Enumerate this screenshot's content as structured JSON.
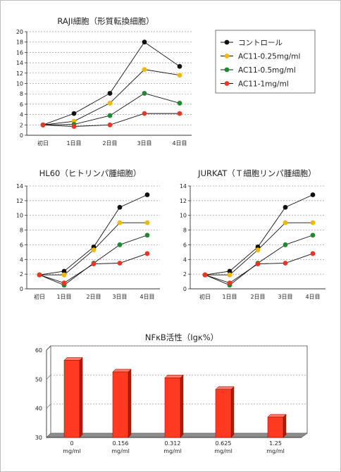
{
  "chart_data": [
    {
      "type": "line",
      "title": "RAJI細胞（形質転換細胞）",
      "categories": [
        "初日",
        "1日目",
        "2日目",
        "3日目",
        "4日目"
      ],
      "ylim": [
        0,
        20
      ],
      "yticks": [
        "0",
        "2",
        "4",
        "6",
        "8",
        "10",
        "12",
        "14",
        "16",
        "18",
        "20"
      ],
      "grid": true,
      "legend_position": "top-right",
      "series": [
        {
          "name": "コントロール",
          "color": "#111111",
          "values": [
            2.0,
            4.2,
            8.1,
            18.0,
            13.3
          ]
        },
        {
          "name": "AC11-0.25mg/ml",
          "color": "#f5b800",
          "values": [
            2.0,
            2.7,
            6.2,
            12.7,
            11.6
          ]
        },
        {
          "name": "AC11-0.5mg/ml",
          "color": "#1e8a2e",
          "values": [
            2.0,
            2.1,
            3.8,
            8.1,
            6.2
          ]
        },
        {
          "name": "AC11-1mg/ml",
          "color": "#ee3524",
          "values": [
            2.0,
            1.7,
            2.0,
            4.2,
            4.2
          ]
        }
      ]
    },
    {
      "type": "line",
      "title": "HL60（ヒトリンパ腫細胞）",
      "categories": [
        "初日",
        "1日目",
        "2日目",
        "3日目",
        "4日目"
      ],
      "ylim": [
        0,
        14
      ],
      "yticks": [
        "0",
        "2",
        "4",
        "6",
        "8",
        "10",
        "12",
        "14"
      ],
      "grid": true,
      "series": [
        {
          "color": "#111111",
          "values": [
            1.9,
            2.4,
            5.7,
            11.1,
            12.8
          ]
        },
        {
          "color": "#f5b800",
          "values": [
            1.9,
            1.9,
            5.3,
            9.0,
            9.0
          ]
        },
        {
          "color": "#1e8a2e",
          "values": [
            1.9,
            0.5,
            3.5,
            6.0,
            7.3
          ]
        },
        {
          "color": "#ee3524",
          "values": [
            1.9,
            0.8,
            3.4,
            3.5,
            4.8
          ]
        }
      ]
    },
    {
      "type": "line",
      "title": "JURKAT（Ｔ細胞リンパ腫細胞）",
      "categories": [
        "初日",
        "1日目",
        "2日目",
        "3日目",
        "4日目"
      ],
      "ylim": [
        0,
        14
      ],
      "yticks": [
        "0",
        "2",
        "4",
        "6",
        "8",
        "10",
        "12",
        "14"
      ],
      "grid": true,
      "series": [
        {
          "color": "#111111",
          "values": [
            1.9,
            2.4,
            5.7,
            11.1,
            12.8
          ]
        },
        {
          "color": "#f5b800",
          "values": [
            1.9,
            1.9,
            5.3,
            9.0,
            9.0
          ]
        },
        {
          "color": "#1e8a2e",
          "values": [
            1.9,
            0.5,
            3.5,
            6.0,
            7.3
          ]
        },
        {
          "color": "#ee3524",
          "values": [
            1.9,
            0.8,
            3.4,
            3.5,
            4.8
          ]
        }
      ]
    },
    {
      "type": "bar",
      "title": "NFκB活性（Igκ%）",
      "categories": [
        [
          "0",
          "mg/ml"
        ],
        [
          "0.156",
          "mg/ml"
        ],
        [
          "0.312",
          "mg/ml"
        ],
        [
          "0.625",
          "mg/ml"
        ],
        [
          "1.25",
          "mg/ml"
        ]
      ],
      "values": [
        56.5,
        52.5,
        50.5,
        46.5,
        37.0
      ],
      "ylim": [
        30,
        60
      ],
      "yticks": [
        "30",
        "40",
        "50",
        "60"
      ],
      "grid": true,
      "color": "#ff3a21"
    }
  ]
}
